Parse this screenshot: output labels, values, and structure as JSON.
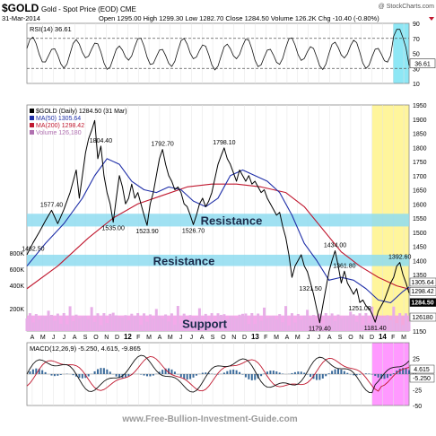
{
  "header": {
    "symbol": "$GOLD",
    "name": "Gold - Spot Price (EOD)",
    "exchange": "CME",
    "watermark": "@ StockCharts.com",
    "date": "31-Mar-2014",
    "quote": "Open 1295.00  High 1299.30  Low 1282.70  Close 1284.50  Volume 126.2K  Chg -10.40 (-0.80%)"
  },
  "footer": {
    "url": "www.Free-Bullion-Investment-Guide.com"
  },
  "colors": {
    "price": "#000000",
    "ma50": "#1f2fa8",
    "ma200": "#c0182f",
    "resistance_band": "#8fdcf0",
    "support_band": "#f29ae6",
    "highlight_recent": "#fff59c",
    "highlight_rsi": "#8ee7f5",
    "highlight_macd": "#ff99ff",
    "volume": "#e7aee7",
    "quote_down": "#c0182f"
  },
  "chart_data": [
    {
      "panel": "rsi",
      "type": "line",
      "label": "RSI(14) 36.61",
      "last_value": 36.61,
      "ylim": [
        10,
        90
      ],
      "y_ticks": [
        "90",
        "70",
        "50",
        "30",
        "10"
      ],
      "reference_lines": [
        70,
        30
      ]
    },
    {
      "panel": "price",
      "type": "line",
      "legend": [
        {
          "key": "price",
          "label": "$GOLD (Daily) 1284.50 (31 Mar)"
        },
        {
          "key": "ma50",
          "label": "MA(50) 1305.64"
        },
        {
          "key": "ma200",
          "label": "MA(200) 1298.42"
        },
        {
          "key": "volume",
          "label": "Volume 126,180"
        }
      ],
      "ylim": [
        1150,
        1950
      ],
      "y_ticks": [
        1950,
        1900,
        1850,
        1800,
        1750,
        1700,
        1650,
        1600,
        1550,
        1500,
        1450,
        1400,
        1350,
        1300,
        1250,
        1200,
        1150
      ],
      "volume_ticks": [
        "800K",
        "600K",
        "400K",
        "200K"
      ],
      "x_labels": [
        "A",
        "M",
        "J",
        "J",
        "A",
        "S",
        "O",
        "N",
        "D",
        "12",
        "F",
        "M",
        "A",
        "M",
        "J",
        "J",
        "A",
        "S",
        "O",
        "N",
        "D",
        "13",
        "F",
        "M",
        "A",
        "M",
        "J",
        "J",
        "A",
        "S",
        "O",
        "N",
        "D",
        "14",
        "F",
        "M"
      ],
      "price_series": [
        [
          0,
          1420
        ],
        [
          2,
          1462.5
        ],
        [
          4,
          1500
        ],
        [
          6,
          1540
        ],
        [
          8,
          1577.4
        ],
        [
          10,
          1530
        ],
        [
          12,
          1580
        ],
        [
          14,
          1640
        ],
        [
          16,
          1720
        ],
        [
          17,
          1620
        ],
        [
          18,
          1700
        ],
        [
          19,
          1780
        ],
        [
          20,
          1830
        ],
        [
          21,
          1860
        ],
        [
          22,
          1895
        ],
        [
          23,
          1760
        ],
        [
          24,
          1804.4
        ],
        [
          25,
          1700
        ],
        [
          26,
          1640
        ],
        [
          27,
          1600
        ],
        [
          28,
          1535
        ],
        [
          29,
          1620
        ],
        [
          30,
          1700
        ],
        [
          31,
          1660
        ],
        [
          32,
          1600
        ],
        [
          33,
          1620
        ],
        [
          34,
          1670
        ],
        [
          35,
          1620
        ],
        [
          36,
          1640
        ],
        [
          37,
          1600
        ],
        [
          38,
          1560
        ],
        [
          39,
          1523.9
        ],
        [
          40,
          1600
        ],
        [
          41,
          1640
        ],
        [
          42,
          1700
        ],
        [
          43,
          1760
        ],
        [
          44,
          1792.7
        ],
        [
          45,
          1740
        ],
        [
          46,
          1700
        ],
        [
          47,
          1680
        ],
        [
          48,
          1650
        ],
        [
          49,
          1660
        ],
        [
          50,
          1640
        ],
        [
          51,
          1600
        ],
        [
          52,
          1590
        ],
        [
          53,
          1560
        ],
        [
          54,
          1526.7
        ],
        [
          55,
          1560
        ],
        [
          56,
          1600
        ],
        [
          57,
          1620
        ],
        [
          58,
          1590
        ],
        [
          59,
          1610
        ],
        [
          60,
          1640
        ],
        [
          61,
          1690
        ],
        [
          62,
          1740
        ],
        [
          63,
          1770
        ],
        [
          64,
          1798.1
        ],
        [
          65,
          1760
        ],
        [
          66,
          1740
        ],
        [
          67,
          1710
        ],
        [
          68,
          1680
        ],
        [
          69,
          1720
        ],
        [
          70,
          1700
        ],
        [
          71,
          1680
        ],
        [
          72,
          1700
        ],
        [
          73,
          1670
        ],
        [
          74,
          1680
        ],
        [
          75,
          1660
        ],
        [
          76,
          1640
        ],
        [
          77,
          1650
        ],
        [
          78,
          1620
        ],
        [
          79,
          1600
        ],
        [
          80,
          1580
        ],
        [
          81,
          1560
        ],
        [
          82,
          1570
        ],
        [
          83,
          1520
        ],
        [
          84,
          1480
        ],
        [
          85,
          1420
        ],
        [
          86,
          1340
        ],
        [
          87,
          1380
        ],
        [
          88,
          1400
        ],
        [
          89,
          1420
        ],
        [
          90,
          1380
        ],
        [
          91,
          1360
        ],
        [
          92,
          1321.5
        ],
        [
          93,
          1280
        ],
        [
          94,
          1230
        ],
        [
          95,
          1179.4
        ],
        [
          96,
          1240
        ],
        [
          97,
          1300
        ],
        [
          98,
          1360
        ],
        [
          99,
          1400
        ],
        [
          100,
          1434
        ],
        [
          101,
          1380
        ],
        [
          102,
          1320
        ],
        [
          103,
          1361.8
        ],
        [
          104,
          1320
        ],
        [
          105,
          1300
        ],
        [
          106,
          1280
        ],
        [
          107,
          1300
        ],
        [
          108,
          1251
        ],
        [
          109,
          1260
        ],
        [
          110,
          1240
        ],
        [
          111,
          1230
        ],
        [
          112,
          1210
        ],
        [
          113,
          1181.4
        ],
        [
          114,
          1220
        ],
        [
          115,
          1240
        ],
        [
          116,
          1260
        ],
        [
          117,
          1290
        ],
        [
          118,
          1320
        ],
        [
          119,
          1340
        ],
        [
          120,
          1380
        ],
        [
          121,
          1392.6
        ],
        [
          122,
          1350
        ],
        [
          123,
          1320
        ],
        [
          124,
          1284.5
        ]
      ],
      "ma50_series": [
        [
          0,
          1380
        ],
        [
          6,
          1460
        ],
        [
          12,
          1530
        ],
        [
          18,
          1620
        ],
        [
          22,
          1700
        ],
        [
          26,
          1760
        ],
        [
          30,
          1740
        ],
        [
          34,
          1680
        ],
        [
          38,
          1650
        ],
        [
          42,
          1640
        ],
        [
          46,
          1660
        ],
        [
          50,
          1650
        ],
        [
          54,
          1610
        ],
        [
          58,
          1590
        ],
        [
          62,
          1620
        ],
        [
          66,
          1700
        ],
        [
          70,
          1720
        ],
        [
          74,
          1700
        ],
        [
          78,
          1680
        ],
        [
          82,
          1640
        ],
        [
          86,
          1560
        ],
        [
          90,
          1460
        ],
        [
          94,
          1400
        ],
        [
          98,
          1330
        ],
        [
          102,
          1340
        ],
        [
          106,
          1330
        ],
        [
          110,
          1300
        ],
        [
          114,
          1260
        ],
        [
          118,
          1250
        ],
        [
          122,
          1290
        ],
        [
          124,
          1305.64
        ]
      ],
      "ma200_series": [
        [
          0,
          1300
        ],
        [
          10,
          1380
        ],
        [
          20,
          1480
        ],
        [
          28,
          1550
        ],
        [
          36,
          1600
        ],
        [
          44,
          1630
        ],
        [
          52,
          1660
        ],
        [
          60,
          1670
        ],
        [
          68,
          1670
        ],
        [
          76,
          1660
        ],
        [
          84,
          1640
        ],
        [
          90,
          1590
        ],
        [
          96,
          1510
        ],
        [
          102,
          1430
        ],
        [
          108,
          1380
        ],
        [
          114,
          1340
        ],
        [
          120,
          1310
        ],
        [
          124,
          1298.42
        ]
      ],
      "annotations": [
        {
          "label": "1462.50",
          "x": 2,
          "value": 1462.5,
          "pos": "below"
        },
        {
          "label": "1577.40",
          "x": 8,
          "value": 1577.4,
          "pos": "above"
        },
        {
          "label": "1804.40",
          "x": 24,
          "value": 1804.4,
          "pos": "above"
        },
        {
          "label": "1535.00",
          "x": 28,
          "value": 1535,
          "pos": "below"
        },
        {
          "label": "1523.90",
          "x": 39,
          "value": 1523.9,
          "pos": "below"
        },
        {
          "label": "1792.70",
          "x": 44,
          "value": 1792.7,
          "pos": "above"
        },
        {
          "label": "1526.70",
          "x": 54,
          "value": 1526.7,
          "pos": "below"
        },
        {
          "label": "1798.10",
          "x": 64,
          "value": 1798.1,
          "pos": "above"
        },
        {
          "label": "1321.50",
          "x": 92,
          "value": 1321.5,
          "pos": "below"
        },
        {
          "label": "1179.40",
          "x": 95,
          "value": 1179.4,
          "pos": "below"
        },
        {
          "label": "1434.00",
          "x": 100,
          "value": 1434,
          "pos": "above"
        },
        {
          "label": "1361.80",
          "x": 103,
          "value": 1361.8,
          "pos": "above"
        },
        {
          "label": "1251.00",
          "x": 108,
          "value": 1251,
          "pos": "below"
        },
        {
          "label": "1181.40",
          "x": 113,
          "value": 1181.4,
          "pos": "below"
        },
        {
          "label": "1392.60",
          "x": 121,
          "value": 1392.6,
          "pos": "above"
        }
      ],
      "zones": [
        {
          "label": "Resistance",
          "kind": "resistance",
          "low": 1520,
          "high": 1565
        },
        {
          "label": "Resistance",
          "kind": "resistance",
          "low": 1380,
          "high": 1420
        },
        {
          "label": "Support",
          "kind": "support",
          "low": 1150,
          "high": 1205
        }
      ],
      "last_labels": [
        "1305.64",
        "1298.42",
        "1284.50",
        "126180"
      ]
    },
    {
      "panel": "macd",
      "type": "line",
      "label": "MACD(12,26,9) -5.250, 4.615, -9.865",
      "macd": -5.25,
      "signal": 4.615,
      "histogram": -9.865,
      "ylim": [
        -50,
        50
      ],
      "y_ticks": [
        "25",
        "0",
        "-25",
        "-50"
      ],
      "last_labels": [
        "4.615",
        "-5.250"
      ]
    }
  ]
}
